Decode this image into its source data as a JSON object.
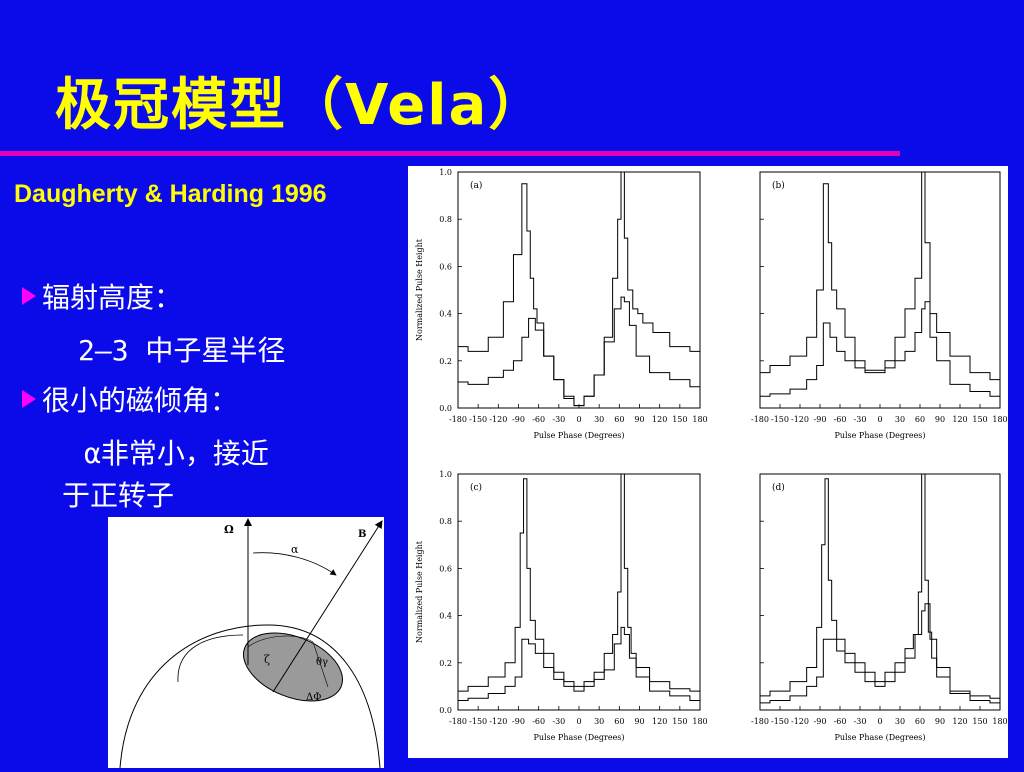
{
  "slide": {
    "title": "极冠模型（Vela）",
    "subtitle": "Daugherty & Harding 1996",
    "bullets": [
      {
        "text": "辐射高度："
      },
      {
        "text": "2—3 中子星半径"
      },
      {
        "text": "很小的磁倾角："
      },
      {
        "text": "α非常小，接近"
      },
      {
        "text": "于正转子"
      }
    ]
  },
  "diagram": {
    "labels": {
      "omega": "Ω",
      "b": "B",
      "alpha": "α",
      "zeta": "ζ",
      "theta": "θγ",
      "delta_phi": "ΔΦ"
    }
  },
  "chart_data": [
    {
      "type": "line",
      "panel": "(a)",
      "xlabel": "Pulse Phase (Degrees)",
      "ylabel": "Normalized Pulse Height",
      "xlim": [
        -180,
        180
      ],
      "ylim": [
        0,
        1.0
      ],
      "xticks": [
        -180,
        -150,
        -120,
        -90,
        -60,
        -30,
        0,
        30,
        60,
        90,
        120,
        150,
        180
      ],
      "yticks": [
        0.0,
        0.2,
        0.4,
        0.6,
        0.8,
        1.0
      ],
      "series": [
        {
          "x": [
            -180,
            -150,
            -120,
            -105,
            -90,
            -80,
            -75,
            -70,
            -65,
            -60,
            -45,
            -30,
            -15,
            0,
            15,
            30,
            45,
            55,
            60,
            65,
            70,
            75,
            85,
            90,
            100,
            120,
            150,
            180
          ],
          "y": [
            0.26,
            0.24,
            0.3,
            0.45,
            0.65,
            0.95,
            0.75,
            0.55,
            0.42,
            0.36,
            0.22,
            0.12,
            0.04,
            0.01,
            0.05,
            0.14,
            0.3,
            0.55,
            0.8,
            1.0,
            0.72,
            0.5,
            0.42,
            0.4,
            0.36,
            0.32,
            0.26,
            0.24
          ]
        },
        {
          "x": [
            -180,
            -150,
            -120,
            -105,
            -90,
            -80,
            -70,
            -60,
            -45,
            -30,
            -15,
            0,
            15,
            30,
            45,
            60,
            65,
            70,
            80,
            90,
            120,
            150,
            180
          ],
          "y": [
            0.11,
            0.1,
            0.13,
            0.16,
            0.2,
            0.3,
            0.38,
            0.33,
            0.22,
            0.12,
            0.05,
            0.01,
            0.05,
            0.14,
            0.28,
            0.42,
            0.47,
            0.45,
            0.35,
            0.22,
            0.15,
            0.12,
            0.09
          ]
        }
      ]
    },
    {
      "type": "line",
      "panel": "(b)",
      "xlabel": "Pulse Phase (Degrees)",
      "ylabel": "",
      "xlim": [
        -180,
        180
      ],
      "ylim": [
        0,
        1.0
      ],
      "xticks": [
        -180,
        -150,
        -120,
        -90,
        -60,
        -30,
        0,
        30,
        60,
        90,
        120,
        150,
        180
      ],
      "yticks": [],
      "series": [
        {
          "x": [
            -180,
            -150,
            -120,
            -100,
            -90,
            -80,
            -75,
            -70,
            -60,
            -45,
            -30,
            -15,
            0,
            15,
            30,
            45,
            60,
            65,
            70,
            80,
            90,
            120,
            150,
            180
          ],
          "y": [
            0.15,
            0.18,
            0.22,
            0.3,
            0.5,
            0.95,
            0.7,
            0.5,
            0.42,
            0.3,
            0.2,
            0.16,
            0.16,
            0.2,
            0.3,
            0.42,
            0.55,
            1.0,
            0.7,
            0.4,
            0.32,
            0.22,
            0.15,
            0.12
          ]
        },
        {
          "x": [
            -180,
            -150,
            -120,
            -100,
            -90,
            -80,
            -70,
            -60,
            -45,
            -30,
            -15,
            0,
            15,
            30,
            45,
            60,
            65,
            70,
            80,
            90,
            120,
            150,
            180
          ],
          "y": [
            0.05,
            0.06,
            0.08,
            0.12,
            0.18,
            0.36,
            0.3,
            0.24,
            0.2,
            0.17,
            0.15,
            0.15,
            0.17,
            0.2,
            0.24,
            0.32,
            0.42,
            0.45,
            0.3,
            0.2,
            0.1,
            0.07,
            0.05
          ]
        }
      ]
    },
    {
      "type": "line",
      "panel": "(c)",
      "xlabel": "Pulse Phase (Degrees)",
      "ylabel": "Normalized Pulse Height",
      "xlim": [
        -180,
        180
      ],
      "ylim": [
        0,
        1.0
      ],
      "xticks": [
        -180,
        -150,
        -120,
        -90,
        -60,
        -30,
        0,
        30,
        60,
        90,
        120,
        150,
        180
      ],
      "yticks": [
        0.0,
        0.2,
        0.4,
        0.6,
        0.8,
        1.0
      ],
      "series": [
        {
          "x": [
            -180,
            -150,
            -120,
            -100,
            -90,
            -85,
            -80,
            -75,
            -70,
            -60,
            -45,
            -30,
            -15,
            0,
            15,
            30,
            45,
            55,
            60,
            65,
            70,
            75,
            80,
            90,
            120,
            150,
            180
          ],
          "y": [
            0.08,
            0.1,
            0.14,
            0.2,
            0.35,
            0.75,
            0.98,
            0.6,
            0.38,
            0.3,
            0.24,
            0.16,
            0.12,
            0.1,
            0.12,
            0.16,
            0.24,
            0.32,
            0.5,
            1.0,
            0.6,
            0.35,
            0.24,
            0.18,
            0.12,
            0.09,
            0.08
          ]
        },
        {
          "x": [
            -180,
            -150,
            -120,
            -100,
            -90,
            -80,
            -70,
            -60,
            -45,
            -30,
            -15,
            0,
            15,
            30,
            45,
            60,
            65,
            70,
            80,
            90,
            120,
            150,
            180
          ],
          "y": [
            0.04,
            0.05,
            0.07,
            0.1,
            0.14,
            0.3,
            0.28,
            0.24,
            0.18,
            0.13,
            0.1,
            0.08,
            0.1,
            0.13,
            0.17,
            0.28,
            0.35,
            0.32,
            0.22,
            0.14,
            0.08,
            0.06,
            0.04
          ]
        }
      ]
    },
    {
      "type": "line",
      "panel": "(d)",
      "xlabel": "Pulse Phase (Degrees)",
      "ylabel": "",
      "xlim": [
        -180,
        180
      ],
      "ylim": [
        0,
        1.0
      ],
      "xticks": [
        -180,
        -150,
        -120,
        -90,
        -60,
        -30,
        0,
        30,
        60,
        90,
        120,
        150,
        180
      ],
      "yticks": [],
      "series": [
        {
          "x": [
            -180,
            -150,
            -120,
            -100,
            -90,
            -85,
            -80,
            -75,
            -70,
            -60,
            -45,
            -30,
            -15,
            0,
            15,
            30,
            45,
            55,
            60,
            65,
            70,
            75,
            80,
            90,
            120,
            150,
            180
          ],
          "y": [
            0.06,
            0.08,
            0.12,
            0.18,
            0.35,
            0.7,
            0.98,
            0.55,
            0.38,
            0.3,
            0.24,
            0.2,
            0.16,
            0.12,
            0.16,
            0.2,
            0.26,
            0.32,
            0.5,
            1.0,
            0.55,
            0.33,
            0.22,
            0.14,
            0.08,
            0.06,
            0.05
          ]
        },
        {
          "x": [
            -180,
            -150,
            -120,
            -100,
            -90,
            -80,
            -70,
            -60,
            -45,
            -30,
            -15,
            0,
            15,
            30,
            45,
            60,
            65,
            70,
            80,
            90,
            120,
            150,
            180
          ],
          "y": [
            0.03,
            0.04,
            0.06,
            0.1,
            0.14,
            0.3,
            0.3,
            0.25,
            0.2,
            0.16,
            0.12,
            0.1,
            0.12,
            0.16,
            0.22,
            0.32,
            0.42,
            0.45,
            0.3,
            0.18,
            0.07,
            0.04,
            0.03
          ]
        }
      ]
    }
  ]
}
